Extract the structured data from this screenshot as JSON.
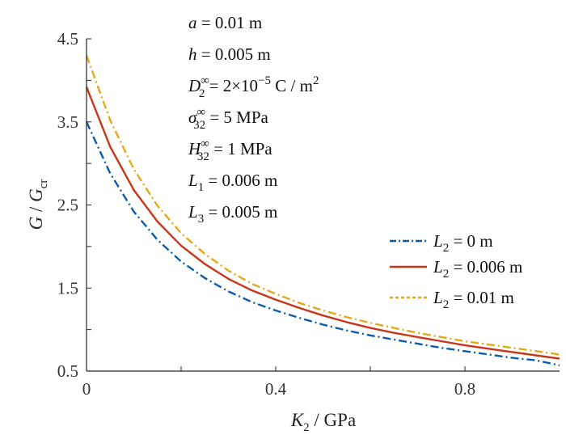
{
  "chart_data": {
    "type": "line",
    "x": [
      0,
      0.05,
      0.1,
      0.15,
      0.2,
      0.25,
      0.3,
      0.35,
      0.4,
      0.45,
      0.5,
      0.55,
      0.6,
      0.65,
      0.7,
      0.75,
      0.8,
      0.85,
      0.9,
      0.95,
      1.0
    ],
    "series": [
      {
        "name": "L2 = 0 m",
        "name_parts": {
          "base": "L",
          "sub": "2",
          "rest": " = 0 m"
        },
        "color": "#0b5cad",
        "dash": "dashdot",
        "values": [
          3.5,
          2.88,
          2.42,
          2.08,
          1.82,
          1.62,
          1.46,
          1.33,
          1.23,
          1.14,
          1.06,
          0.99,
          0.93,
          0.88,
          0.83,
          0.78,
          0.74,
          0.7,
          0.66,
          0.63,
          0.57
        ]
      },
      {
        "name": "L2 = 0.006 m",
        "name_parts": {
          "base": "L",
          "sub": "2",
          "rest": " = 0.006 m"
        },
        "color": "#c8361a",
        "dash": "solid",
        "values": [
          3.92,
          3.2,
          2.68,
          2.3,
          2.01,
          1.79,
          1.61,
          1.47,
          1.36,
          1.26,
          1.17,
          1.09,
          1.02,
          0.96,
          0.91,
          0.86,
          0.81,
          0.77,
          0.73,
          0.69,
          0.65
        ]
      },
      {
        "name": "L2 = 0.01 m",
        "name_parts": {
          "base": "L",
          "sub": "2",
          "rest": " = 0.01 m"
        },
        "color": "#e5a819",
        "dash": "dashdot",
        "values": [
          4.3,
          3.52,
          2.93,
          2.49,
          2.16,
          1.91,
          1.71,
          1.55,
          1.43,
          1.32,
          1.23,
          1.15,
          1.08,
          1.02,
          0.96,
          0.91,
          0.86,
          0.82,
          0.78,
          0.74,
          0.7
        ]
      }
    ],
    "xlim": [
      0,
      1.0
    ],
    "ylim": [
      0.5,
      4.5
    ],
    "xticks": [
      0,
      0.4,
      0.8
    ],
    "yticks": [
      0.5,
      1.5,
      2.5,
      3.5,
      4.5
    ],
    "xticks_minor": [
      0.2,
      0.6
    ],
    "yticks_minor": [
      1.0,
      2.0,
      3.0,
      4.0
    ],
    "xlabel": {
      "base": "K",
      "sub": "2",
      "rest": " / GPa"
    },
    "ylabel": {
      "base": "G",
      "mid": " / ",
      "base2": "G",
      "sub2": "cr"
    },
    "legend_position": "center-right",
    "annotations": [
      {
        "text": "a = 0.01 m"
      },
      {
        "text": "h = 0.005 m"
      },
      {
        "text": "D2∞ = 2×10−5 C / m2"
      },
      {
        "text": "σ32∞ = 5 MPa"
      },
      {
        "text": "H32∞ = 1 MPa"
      },
      {
        "text": "L1 = 0.006 m"
      },
      {
        "text": "L3 = 0.005 m"
      }
    ]
  }
}
